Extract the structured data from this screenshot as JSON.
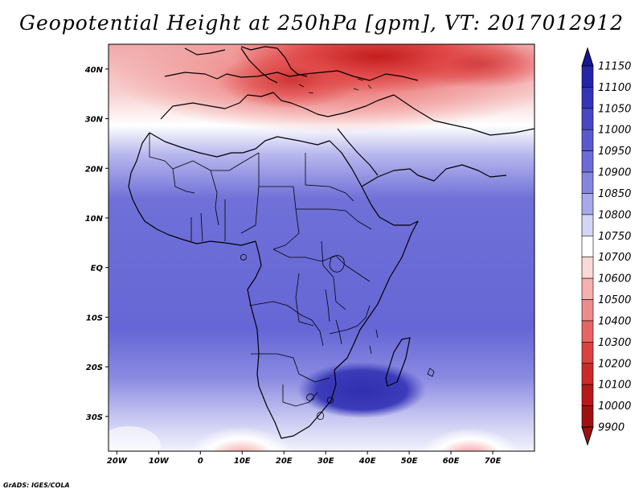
{
  "title": "Geopotential Height at 250hPa [gpm], VT: 2017012912",
  "credit": "GrADS: IGES/COLA",
  "map": {
    "lon_range": [
      -22,
      80
    ],
    "lat_range": [
      -37,
      45
    ],
    "lon_ticks": [
      "20W",
      "10W",
      "0",
      "10E",
      "20E",
      "30E",
      "40E",
      "50E",
      "60E",
      "70E"
    ],
    "lat_ticks": [
      "40N",
      "30N",
      "20N",
      "10N",
      "EQ",
      "10S",
      "20S",
      "30S"
    ]
  },
  "colorbar": {
    "levels": [
      "11150",
      "11100",
      "11050",
      "11000",
      "10950",
      "10900",
      "10850",
      "10800",
      "10750",
      "10700",
      "10600",
      "10500",
      "10400",
      "10300",
      "10200",
      "10100",
      "10000",
      "9900"
    ],
    "colors": [
      "#161696",
      "#2424a8",
      "#3434b8",
      "#4848c4",
      "#5a5ad0",
      "#6c6cd8",
      "#8686e0",
      "#a8a8ec",
      "#d4d4f6",
      "#ffffff",
      "#fbd8d8",
      "#f5b0b0",
      "#ee8c8c",
      "#e66666",
      "#dc4242",
      "#cc2828",
      "#b81818",
      "#a01010"
    ]
  }
}
